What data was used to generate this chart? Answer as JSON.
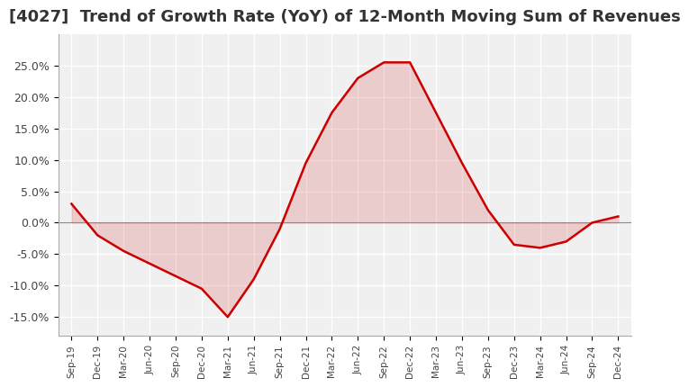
{
  "title": "[4027]  Trend of Growth Rate (YoY) of 12-Month Moving Sum of Revenues",
  "title_fontsize": 13,
  "line_color": "#cc0000",
  "background_color": "#ffffff",
  "plot_bg_color": "#f0f0f0",
  "grid_color": "#ffffff",
  "ylim": [
    -0.18,
    0.3
  ],
  "yticks": [
    -0.15,
    -0.1,
    -0.05,
    0.0,
    0.05,
    0.1,
    0.15,
    0.2,
    0.25
  ],
  "values": [
    0.03,
    -0.02,
    -0.045,
    -0.065,
    -0.085,
    -0.105,
    -0.15,
    -0.09,
    -0.01,
    0.095,
    0.175,
    0.23,
    0.255,
    0.255,
    0.175,
    0.095,
    0.02,
    -0.035,
    -0.04,
    -0.03,
    0.0,
    0.01
  ],
  "xlabel_dates": [
    "Sep-19",
    "Dec-19",
    "Mar-20",
    "Jun-20",
    "Sep-20",
    "Dec-20",
    "Mar-21",
    "Jun-21",
    "Sep-21",
    "Dec-21",
    "Mar-22",
    "Jun-22",
    "Sep-22",
    "Dec-22",
    "Mar-23",
    "Jun-23",
    "Sep-23",
    "Dec-23",
    "Mar-24",
    "Jun-24",
    "Sep-24",
    "Dec-24"
  ]
}
